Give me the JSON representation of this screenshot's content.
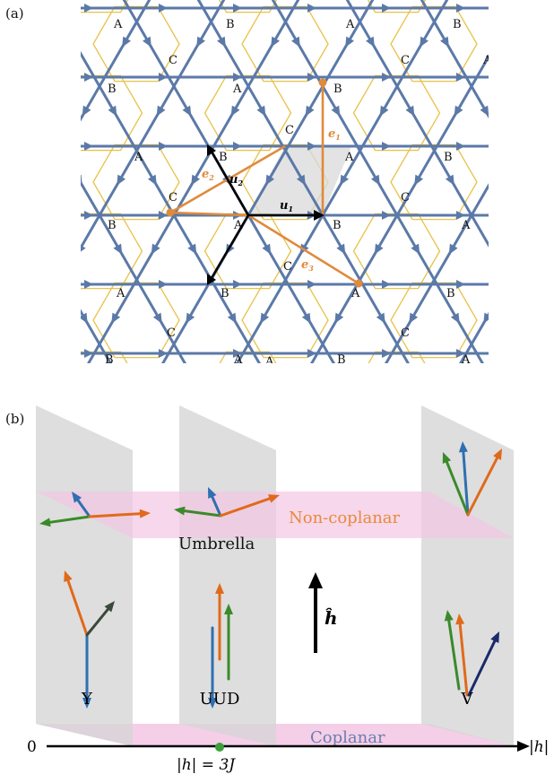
{
  "panel_a": {
    "label": "(a)",
    "sublattice": [
      "A",
      "B",
      "C"
    ],
    "vectors": {
      "u1": "u",
      "u1_sub": "1",
      "u2": "u",
      "u2_sub": "2",
      "e1": "e",
      "e1_sub": "1",
      "e2": "e",
      "e2_sub": "2",
      "e3": "e",
      "e3_sub": "3"
    },
    "colors": {
      "lattice": "#5b79a8",
      "honeycomb": "#e8c24a",
      "vector": "#e08a3c",
      "shade": "#d0d0d0",
      "black": "#000000"
    }
  },
  "panel_b": {
    "label": "(b)",
    "noncoplanar": "Non-coplanar",
    "coplanar": "Coplanar",
    "umbrella": "Umbrella",
    "states": [
      "Y",
      "UUD",
      "V"
    ],
    "field": "ĥ",
    "axis_zero": "0",
    "axis_end": "|h|",
    "critical": "|h| = 3J",
    "colors": {
      "plane": "#dcdcdc",
      "pink": "#f3c6e4",
      "noncoplanar_text": "#e8893a",
      "coplanar_text": "#6a7fb0",
      "blue": "#2f6fb0",
      "orange": "#e06a1a",
      "green": "#3a8a2a",
      "navy": "#1a2a6a",
      "dark": "#3a4a3a",
      "dot": "#3aa03a"
    }
  }
}
